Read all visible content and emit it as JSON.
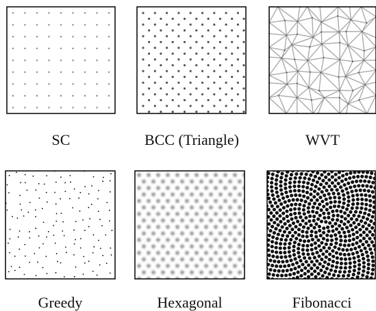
{
  "panels": [
    {
      "label": "SC"
    },
    {
      "label": "BCC (Triangle)"
    },
    {
      "label": "WVT"
    },
    {
      "label": "Greedy"
    },
    {
      "label": "Hexagonal"
    },
    {
      "label": "Fibonacci"
    }
  ]
}
